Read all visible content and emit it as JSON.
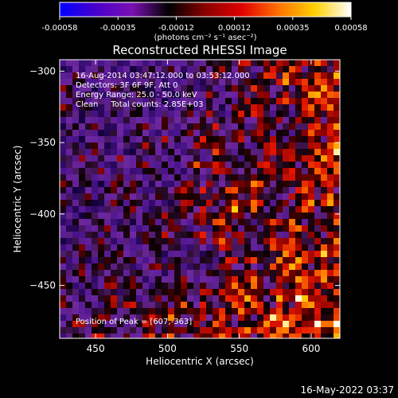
{
  "chart_data": {
    "type": "heatmap",
    "title": "Reconstructed RHESSI Image",
    "xlabel": "Heliocentric X (arcsec)",
    "ylabel": "Heliocentric Y (arcsec)",
    "xlim": [
      425,
      620
    ],
    "ylim": [
      -487,
      -292
    ],
    "x_ticks": [
      450,
      500,
      550,
      600
    ],
    "y_ticks": [
      -300,
      -350,
      -400,
      -450
    ],
    "colorbar": {
      "range": [
        -0.00058,
        0.00058
      ],
      "ticks": [
        "-0.00058",
        "-0.00035",
        "-0.00012",
        "0.00012",
        "0.00035",
        "0.00058"
      ],
      "unit_label": "(photons cm⁻² s⁻¹ asec⁻²)",
      "colors": [
        "#0000ff",
        "#4a00cc",
        "#7a10b0",
        "#000000",
        "#8a0000",
        "#e00000",
        "#ff7000",
        "#ffd000",
        "#ffffff"
      ]
    },
    "annotations": {
      "time_range": "16-Aug-2014 03:47:12.000 to 03:53:12.000",
      "detectors": "Detectors: 3F 6F 9F, Att 0",
      "energy": "Energy Range: 25.0 - 50.0 keV",
      "clean": "Clean     Total counts: 2.85E+03",
      "peak": "Position of Peak = [607,-363]"
    },
    "timestamp": "16-May-2022 03:37"
  }
}
